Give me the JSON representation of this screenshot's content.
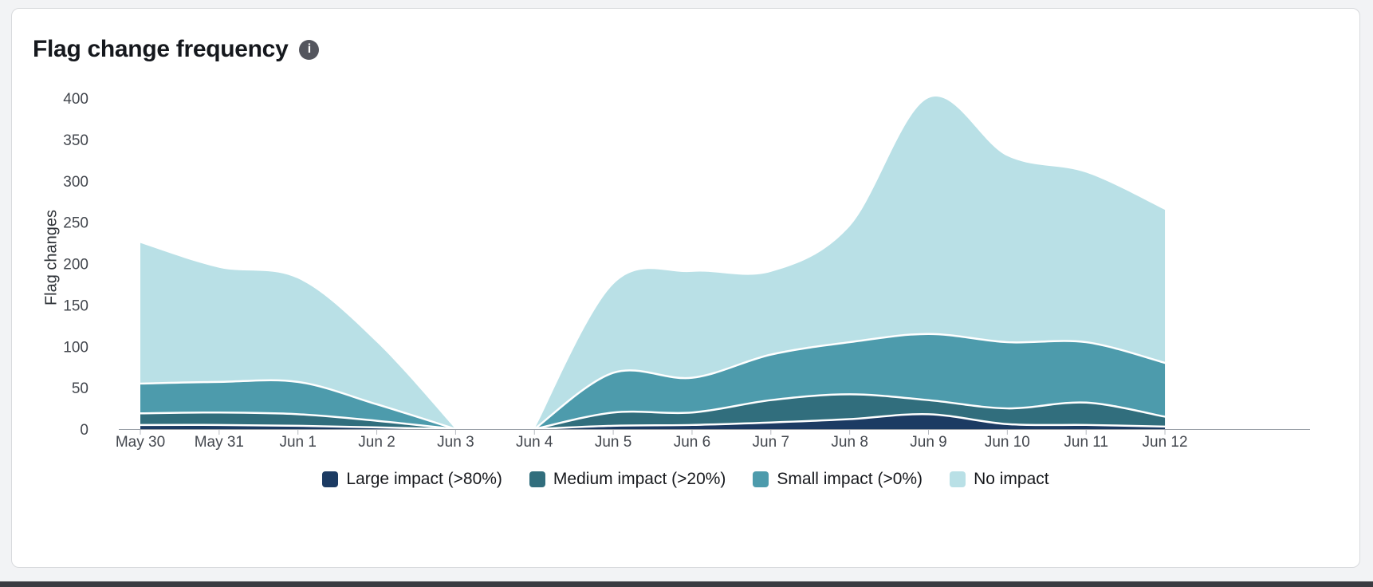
{
  "header": {
    "title": "Flag change frequency",
    "info_glyph": "i"
  },
  "chart_data": {
    "type": "area",
    "stacked": true,
    "title": "Flag change frequency",
    "xlabel": "",
    "ylabel": "Flag changes",
    "ylim": [
      0,
      400
    ],
    "yticks": [
      0,
      50,
      100,
      150,
      200,
      250,
      300,
      350,
      400
    ],
    "grid": false,
    "legend_position": "bottom",
    "separator_color": "#ffffff",
    "categories": [
      "May 30",
      "May 31",
      "Jun 1",
      "Jun 2",
      "Jun 3",
      "Jun 4",
      "Jun 5",
      "Jun 6",
      "Jun 7",
      "Jun 8",
      "Jun 9",
      "Jun 10",
      "Jun 11",
      "Jun 12"
    ],
    "segments": [
      [
        0,
        4
      ],
      [
        5,
        13
      ]
    ],
    "series": [
      {
        "name": "Large impact (>80%)",
        "color": "#1c3b63",
        "values": [
          5,
          5,
          4,
          2,
          0,
          0,
          4,
          5,
          8,
          12,
          18,
          6,
          5,
          3
        ]
      },
      {
        "name": "Medium impact (>20%)",
        "color": "#316e7d",
        "values": [
          14,
          15,
          14,
          8,
          0,
          0,
          16,
          15,
          27,
          30,
          17,
          19,
          27,
          12
        ]
      },
      {
        "name": "Small impact (>0%)",
        "color": "#4d9bac",
        "values": [
          36,
          37,
          39,
          20,
          0,
          0,
          48,
          42,
          55,
          63,
          80,
          80,
          73,
          65
        ]
      },
      {
        "name": "No impact",
        "color": "#b9e0e6",
        "values": [
          170,
          138,
          125,
          75,
          0,
          0,
          107,
          128,
          100,
          140,
          285,
          225,
          205,
          185
        ]
      }
    ]
  },
  "colors": {
    "page_bg": "#f2f3f5",
    "card_bg": "#ffffff",
    "card_border": "#d8dadd",
    "axis": "#9aa0a8",
    "tick_mark": "#b6bac0",
    "tick_label": "#43474e",
    "title": "#15181d",
    "bottom_strip": "#3a3b41"
  }
}
